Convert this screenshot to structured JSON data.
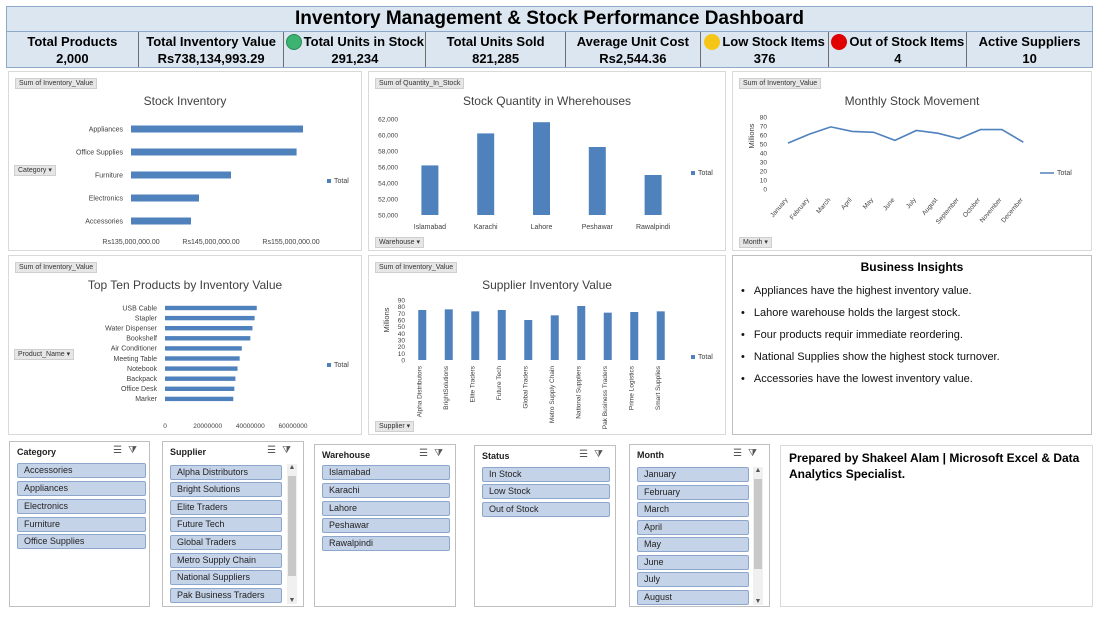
{
  "header": {
    "title": "Inventory Management & Stock Performance Dashboard"
  },
  "kpis": [
    {
      "label": "Total Products",
      "value": "2,000",
      "dot": ""
    },
    {
      "label": "Total Inventory Value",
      "value": "Rs738,134,993.29",
      "dot": ""
    },
    {
      "label": "Total Units in Stock",
      "value": "291,234",
      "dot": "#3cb371"
    },
    {
      "label": "Total Units Sold",
      "value": "821,285",
      "dot": ""
    },
    {
      "label": "Average Unit Cost",
      "value": "Rs2,544.36",
      "dot": ""
    },
    {
      "label": "Low Stock Items",
      "value": "376",
      "dot": "#f5c518"
    },
    {
      "label": "Out of Stock Items",
      "value": "4",
      "dot": "#e00000"
    },
    {
      "label": "Active Suppliers",
      "value": "10",
      "dot": ""
    }
  ],
  "colors": {
    "bar": "#4f81bd",
    "header_bg": "#dce6f1"
  },
  "charts": {
    "stock_inventory": {
      "field_value": "Sum of Inventory_Value",
      "field_axis": "Category",
      "legend": "Total"
    },
    "stock_quantity": {
      "field_value": "Sum of Quantity_In_Stock",
      "field_axis": "Warehouse",
      "legend": "Total"
    },
    "monthly_movement": {
      "field_value": "Sum of Inventory_Value",
      "field_axis": "Month",
      "legend": "Total"
    },
    "top_ten": {
      "field_value": "Sum of Inventory_Value",
      "field_axis": "Product_Name",
      "legend": "Total"
    },
    "supplier_value": {
      "field_value": "Sum of Inventory_Value",
      "field_axis": "Supplier",
      "legend": "Total"
    }
  },
  "chart_data": [
    {
      "type": "bar",
      "orientation": "horizontal",
      "title": "Stock Inventory",
      "categories": [
        "Appliances",
        "Office Supplies",
        "Furniture",
        "Electronics",
        "Accessories"
      ],
      "values": [
        156500000,
        155700000,
        147500000,
        143500000,
        142500000
      ],
      "xlim": [
        135000000,
        160000000
      ],
      "tick_labels": [
        "Rs135,000,000.00",
        "Rs145,000,000.00",
        "Rs155,000,000.00"
      ],
      "tick_values": [
        135000000,
        145000000,
        155000000
      ],
      "legend": "Total",
      "legend_position": "right"
    },
    {
      "type": "bar",
      "title": "Stock Quantity in Wherehouses",
      "categories": [
        "Islamabad",
        "Karachi",
        "Lahore",
        "Peshawar",
        "Rawalpindi"
      ],
      "values": [
        56200,
        60200,
        61600,
        58500,
        55000
      ],
      "ylim": [
        50000,
        62000
      ],
      "tick_labels": [
        "50,000",
        "52,000",
        "54,000",
        "56,000",
        "58,000",
        "60,000",
        "62,000"
      ],
      "tick_values": [
        50000,
        52000,
        54000,
        56000,
        58000,
        60000,
        62000
      ],
      "legend": "Total",
      "legend_position": "right"
    },
    {
      "type": "line",
      "title": "Monthly Stock Movement",
      "ylabel": "Millions",
      "categories": [
        "January",
        "February",
        "March",
        "April",
        "May",
        "June",
        "July",
        "August",
        "September",
        "October",
        "November",
        "December"
      ],
      "values": [
        51,
        61,
        69,
        64,
        63,
        54,
        65,
        62,
        56,
        66,
        66,
        52
      ],
      "ylim": [
        0,
        80
      ],
      "tick_labels": [
        "0",
        "10",
        "20",
        "30",
        "40",
        "50",
        "60",
        "70",
        "80"
      ],
      "tick_values": [
        0,
        10,
        20,
        30,
        40,
        50,
        60,
        70,
        80
      ],
      "legend": "Total",
      "legend_position": "right"
    },
    {
      "type": "bar",
      "orientation": "horizontal",
      "title": "Top Ten Products by Inventory Value",
      "categories": [
        "USB Cable",
        "Stapler",
        "Water Dispenser",
        "Bookshelf",
        "Air Conditioner",
        "Meeting Table",
        "Notebook",
        "Backpack",
        "Office Desk",
        "Marker"
      ],
      "values": [
        43000000,
        42000000,
        41000000,
        40000000,
        36000000,
        35000000,
        34000000,
        33000000,
        32500000,
        32000000
      ],
      "xlim": [
        0,
        60000000
      ],
      "tick_labels": [
        "0",
        "20000000",
        "40000000",
        "60000000"
      ],
      "tick_values": [
        0,
        20000000,
        40000000,
        60000000
      ],
      "legend": "Total",
      "legend_position": "right"
    },
    {
      "type": "bar",
      "title": "Supplier Inventory Value",
      "ylabel": "Millions",
      "categories": [
        "Alpha Distributors",
        "BrightSolutions",
        "Elite Traders",
        "Future Tech",
        "Global Traders",
        "Metro Supply Chain",
        "National Suppliers",
        "Pak Business Traders",
        "Prime Logistics",
        "Smart Supplies"
      ],
      "values": [
        75,
        76,
        73,
        75,
        60,
        67,
        81,
        71,
        72,
        73
      ],
      "ylim": [
        0,
        90
      ],
      "tick_labels": [
        "0",
        "10",
        "20",
        "30",
        "40",
        "50",
        "60",
        "70",
        "80",
        "90"
      ],
      "tick_values": [
        0,
        10,
        20,
        30,
        40,
        50,
        60,
        70,
        80,
        90
      ],
      "legend": "Total",
      "legend_position": "right"
    }
  ],
  "insights": {
    "title": "Business Insights",
    "items": [
      "Appliances have the highest inventory value.",
      "Lahore warehouse holds the largest stock.",
      "Four products requir immediate reordering.",
      "National Supplies show the highest stock turnover.",
      "Accessories have the lowest inventory value."
    ]
  },
  "slicers": {
    "category": {
      "title": "Category",
      "items": [
        "Accessories",
        "Appliances",
        "Electronics",
        "Furniture",
        "Office Supplies"
      ]
    },
    "supplier": {
      "title": "Supplier",
      "items": [
        "Alpha Distributors",
        "Bright Solutions",
        "Elite Traders",
        "Future Tech",
        "Global Traders",
        "Metro Supply Chain",
        "National Suppliers",
        "Pak Business Traders"
      ]
    },
    "warehouse": {
      "title": "Warehouse",
      "items": [
        "Islamabad",
        "Karachi",
        "Lahore",
        "Peshawar",
        "Rawalpindi"
      ]
    },
    "status": {
      "title": "Status",
      "items": [
        "In Stock",
        "Low Stock",
        "Out of Stock"
      ]
    },
    "month": {
      "title": "Month",
      "items": [
        "January",
        "February",
        "March",
        "April",
        "May",
        "June",
        "July",
        "August"
      ]
    }
  },
  "credit": {
    "text": "Prepared by Shakeel Alam | Microsoft Excel & Data Analytics Specialist."
  }
}
